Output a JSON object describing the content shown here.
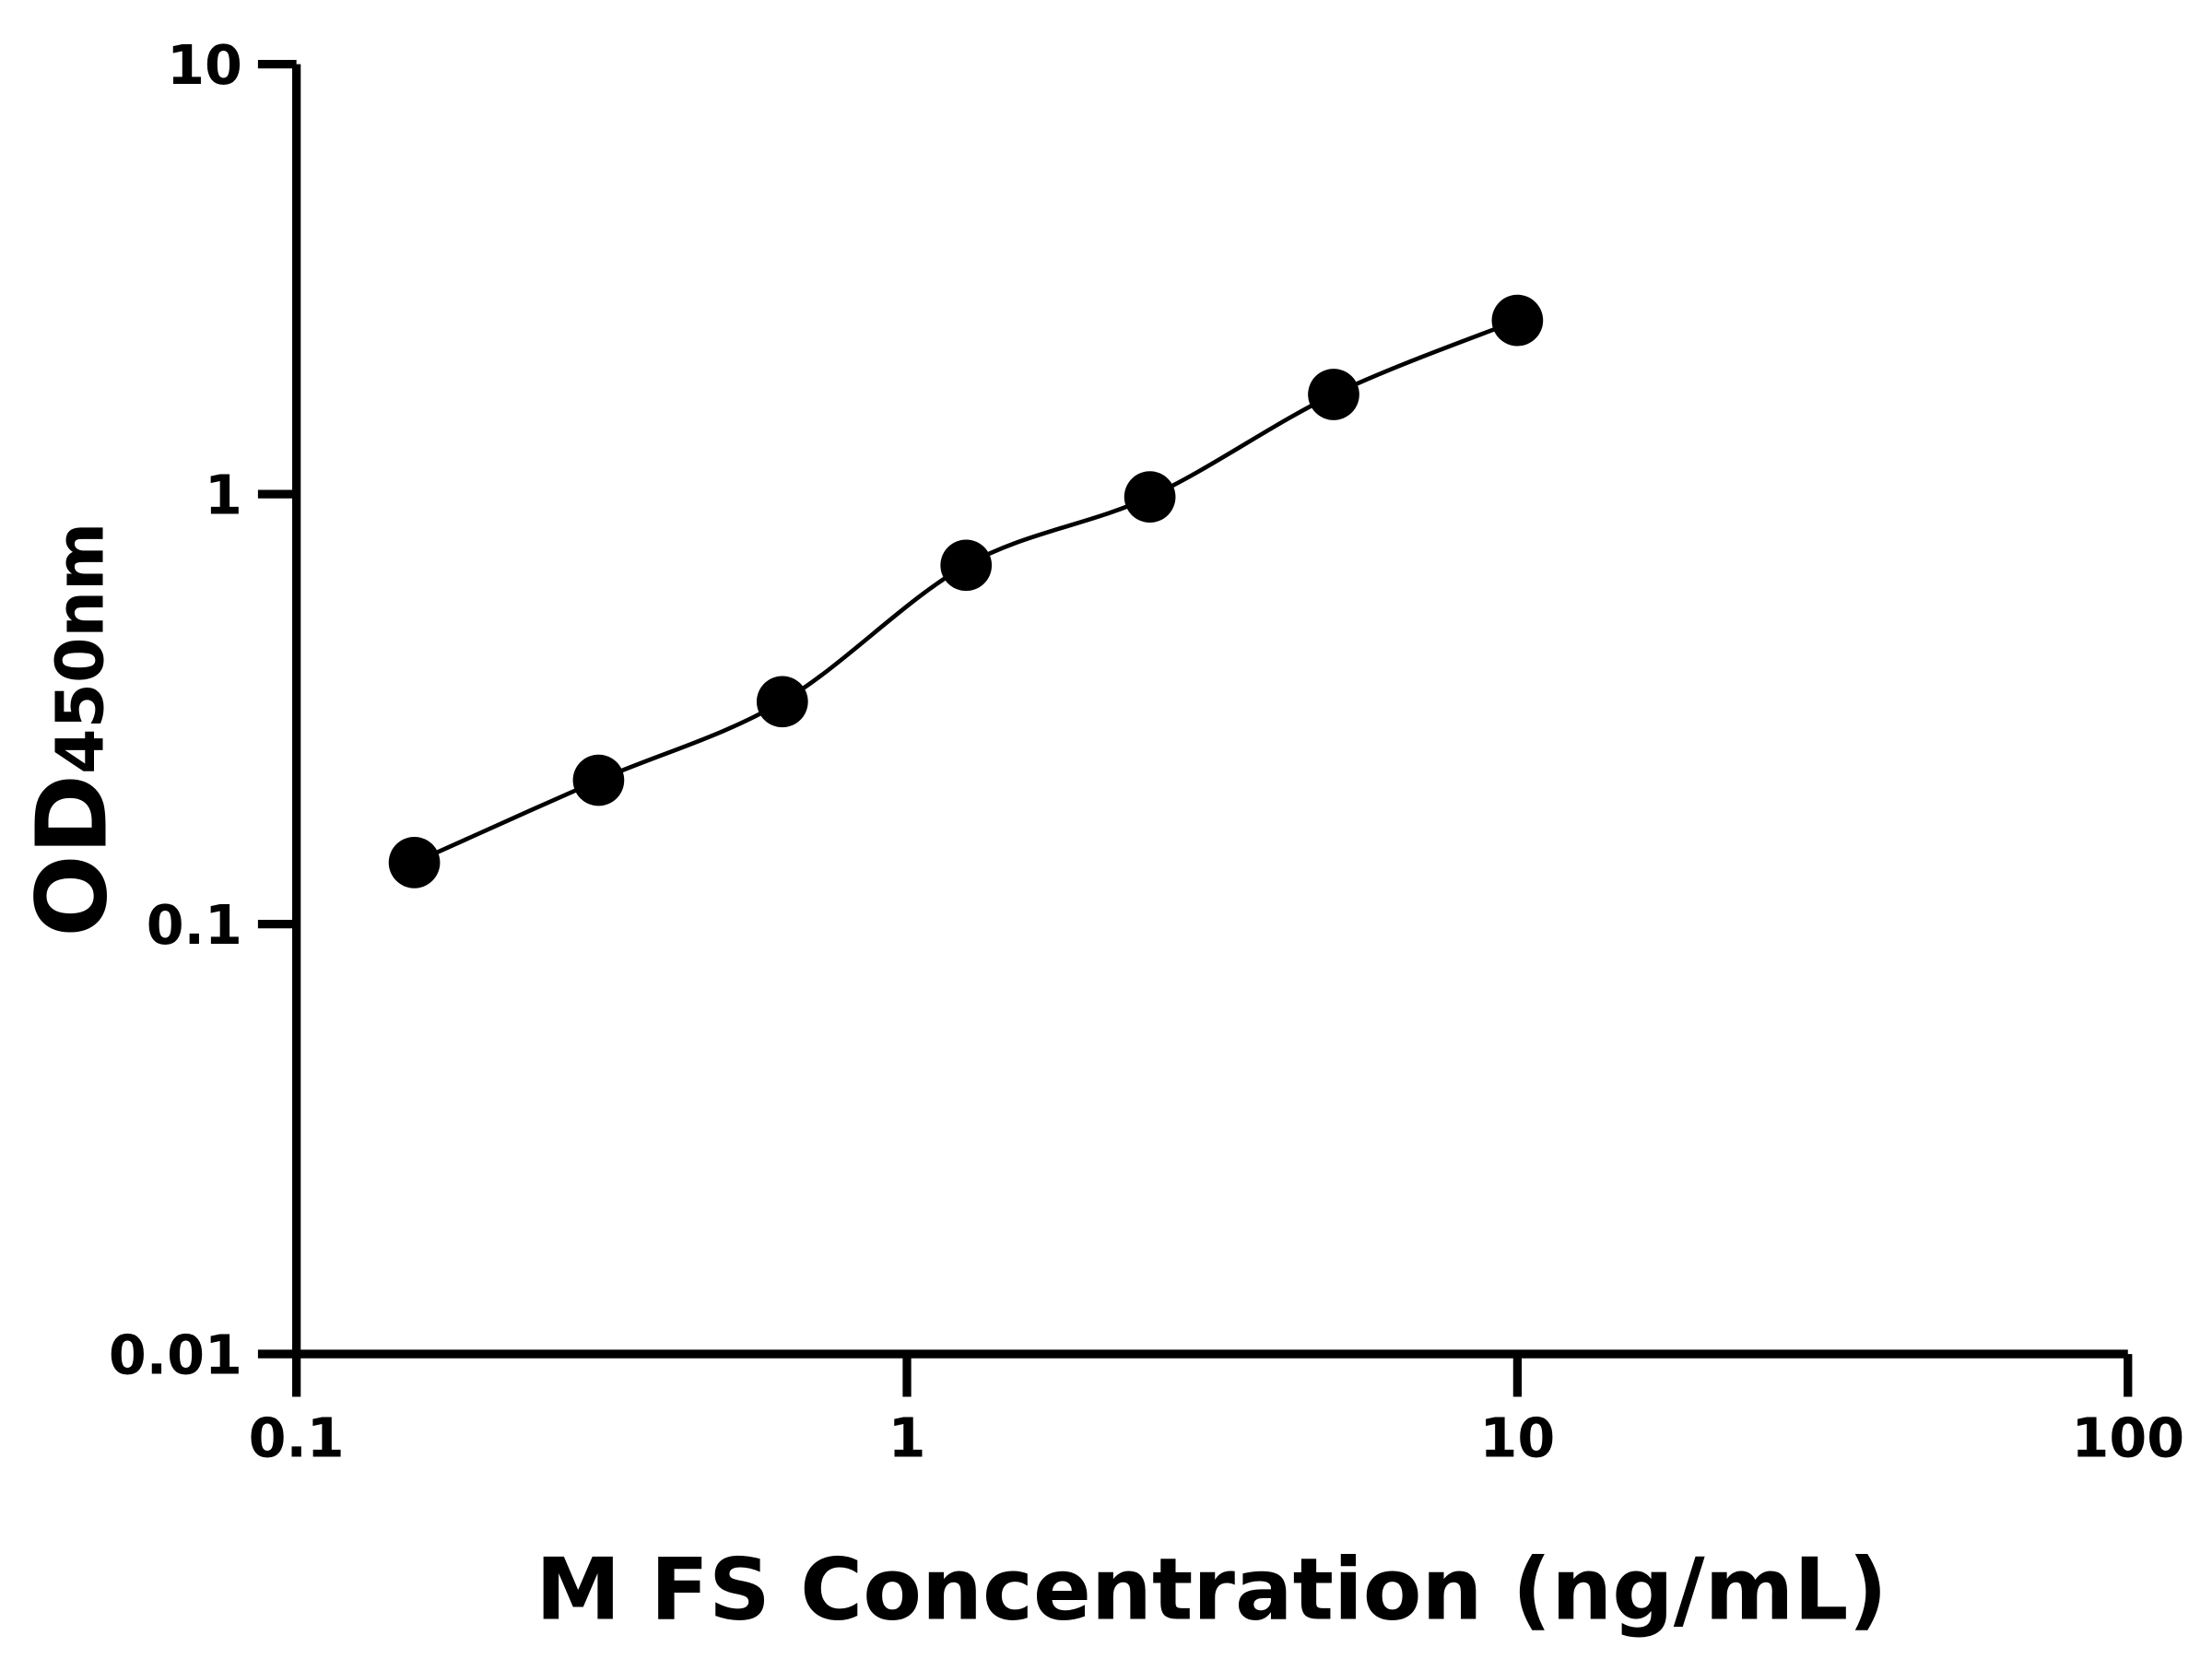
{
  "chart_data": {
    "type": "scatter",
    "title": "",
    "xlabel": "M FS Concentration (ng/mL)",
    "ylabel_main": "OD",
    "ylabel_sub": "450nm",
    "x_scale": "log",
    "y_scale": "log",
    "xlim": [
      0.1,
      100
    ],
    "ylim": [
      0.01,
      10
    ],
    "x_ticks": [
      "0.1",
      "1",
      "10",
      "100"
    ],
    "y_ticks": [
      "0.01",
      "0.1",
      "1",
      "10"
    ],
    "grid": false,
    "legend": "none",
    "fit_curve": true,
    "color": "#000000",
    "series": [
      {
        "x": [
          0.156,
          0.3125,
          0.625,
          1.25,
          2.5,
          5,
          10
        ],
        "y": [
          0.139,
          0.216,
          0.329,
          0.683,
          0.985,
          1.705,
          2.535
        ]
      }
    ]
  }
}
